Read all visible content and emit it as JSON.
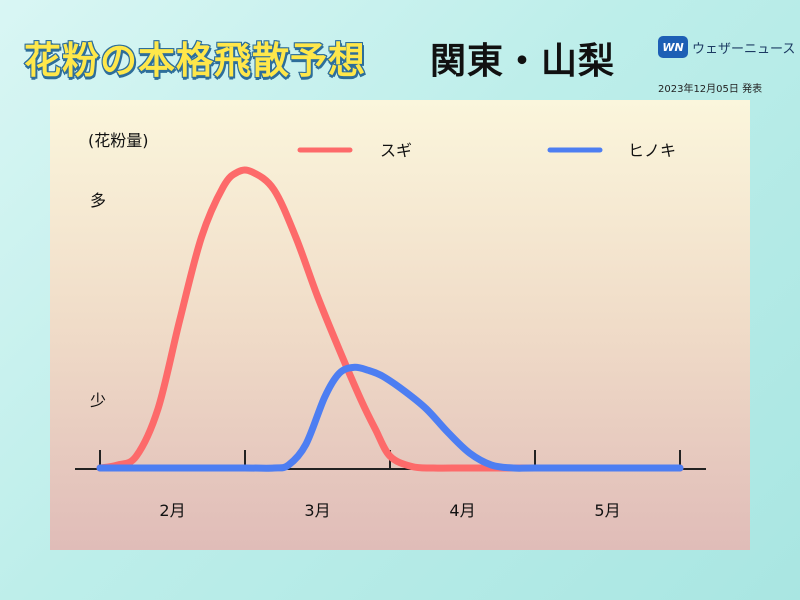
{
  "header": {
    "title": "花粉の本格飛散予想",
    "region": "関東・山梨",
    "brand": "ウェザーニュース",
    "brand_mark": "WN",
    "date": "2023年12月05日 発表"
  },
  "colors": {
    "sugi": "#fd6a6a",
    "hinoki": "#4d7ef2",
    "title_fill": "#ffe74a",
    "title_stroke": "#2e6e9a"
  },
  "chart_data": {
    "type": "line",
    "ylabel": "(花粉量)",
    "ytick_labels": {
      "high": "多",
      "low": "少"
    },
    "categories": [
      "2月",
      "3月",
      "4月",
      "5月"
    ],
    "xlim": [
      1.0,
      5.0
    ],
    "ylim": [
      0,
      1.0
    ],
    "legend_position": "top",
    "series": [
      {
        "name": "スギ",
        "color": "#fd6a6a",
        "x": [
          1.0,
          1.12,
          1.25,
          1.4,
          1.55,
          1.7,
          1.85,
          1.95,
          2.05,
          2.2,
          2.35,
          2.5,
          2.65,
          2.8,
          2.9,
          3.0,
          3.15,
          3.3,
          3.5,
          3.7,
          4.0,
          4.5,
          5.0
        ],
        "values": [
          0.0,
          0.01,
          0.04,
          0.2,
          0.5,
          0.78,
          0.95,
          1.0,
          1.0,
          0.94,
          0.78,
          0.58,
          0.4,
          0.23,
          0.13,
          0.04,
          0.005,
          0.0,
          0.0,
          0.0,
          0.0,
          0.0,
          0.0
        ]
      },
      {
        "name": "ヒノキ",
        "color": "#4d7ef2",
        "x": [
          1.0,
          1.5,
          2.0,
          2.2,
          2.3,
          2.42,
          2.55,
          2.65,
          2.75,
          2.85,
          2.95,
          3.1,
          3.25,
          3.4,
          3.55,
          3.7,
          3.85,
          4.0,
          4.5,
          5.0
        ],
        "values": [
          0.0,
          0.0,
          0.0,
          0.0,
          0.01,
          0.08,
          0.24,
          0.32,
          0.34,
          0.33,
          0.31,
          0.26,
          0.2,
          0.12,
          0.05,
          0.01,
          0.0,
          0.0,
          0.0,
          0.0
        ]
      }
    ]
  }
}
